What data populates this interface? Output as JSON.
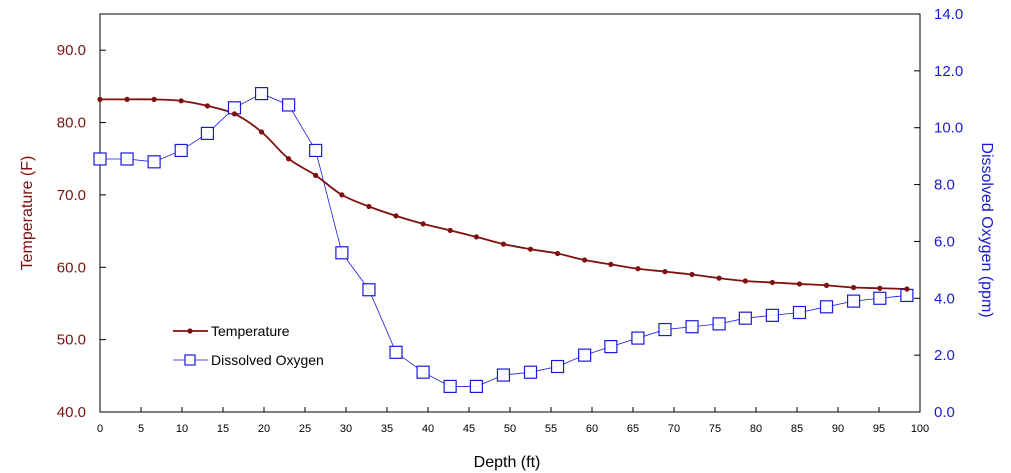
{
  "chart_data": {
    "type": "line",
    "xlabel": "Depth (ft)",
    "ylabel_left": "Temperature (F)",
    "ylabel_right": "Dissolved Oxygen (ppm)",
    "xlim": [
      0,
      100
    ],
    "ylim_left": [
      40,
      95
    ],
    "ylim_right": [
      0,
      14
    ],
    "x_ticks": [
      "0",
      "5",
      "10",
      "15",
      "20",
      "25",
      "30",
      "35",
      "40",
      "45",
      "50",
      "55",
      "60",
      "65",
      "70",
      "75",
      "80",
      "85",
      "90",
      "95",
      "100"
    ],
    "y_left_ticks": [
      "40.0",
      "50.0",
      "60.0",
      "70.0",
      "80.0",
      "90.0"
    ],
    "y_right_ticks": [
      "0.0",
      "2.0",
      "4.0",
      "6.0",
      "8.0",
      "10.0",
      "12.0",
      "14.0"
    ],
    "grid": false,
    "legend_position": "lower-left",
    "series": [
      {
        "name": "Temperature",
        "axis": "left",
        "color": "#7f1010",
        "marker": "filled-circle",
        "x": [
          0,
          3.3,
          6.6,
          9.9,
          13.1,
          16.4,
          19.7,
          23.0,
          26.3,
          29.5,
          32.8,
          36.1,
          39.4,
          42.7,
          45.9,
          49.2,
          52.5,
          55.8,
          59.1,
          62.3,
          65.6,
          68.9,
          72.2,
          75.5,
          78.7,
          82.0,
          85.3,
          88.6,
          91.9,
          95.1,
          98.4
        ],
        "values": [
          83.2,
          83.2,
          83.2,
          83.0,
          82.3,
          81.2,
          78.7,
          75.0,
          72.7,
          70.0,
          68.4,
          67.1,
          66.0,
          65.1,
          64.2,
          63.2,
          62.5,
          61.9,
          61.0,
          60.4,
          59.8,
          59.4,
          59.0,
          58.5,
          58.1,
          57.9,
          57.7,
          57.5,
          57.2,
          57.1,
          57.0
        ]
      },
      {
        "name": "Dissolved Oxygen",
        "axis": "right",
        "color": "#1a1ad6",
        "marker": "open-square",
        "x": [
          0,
          3.3,
          6.6,
          9.9,
          13.1,
          16.4,
          19.7,
          23.0,
          26.3,
          29.5,
          32.8,
          36.1,
          39.4,
          42.7,
          45.9,
          49.2,
          52.5,
          55.8,
          59.1,
          62.3,
          65.6,
          68.9,
          72.2,
          75.5,
          78.7,
          82.0,
          85.3,
          88.6,
          91.9,
          95.1,
          98.4
        ],
        "values": [
          8.9,
          8.9,
          8.8,
          9.2,
          9.8,
          10.7,
          11.2,
          10.8,
          9.2,
          5.6,
          4.3,
          2.1,
          1.4,
          0.9,
          0.9,
          1.3,
          1.4,
          1.6,
          2.0,
          2.3,
          2.6,
          2.9,
          3.0,
          3.1,
          3.3,
          3.4,
          3.5,
          3.7,
          3.9,
          4.0,
          4.1
        ]
      }
    ]
  }
}
